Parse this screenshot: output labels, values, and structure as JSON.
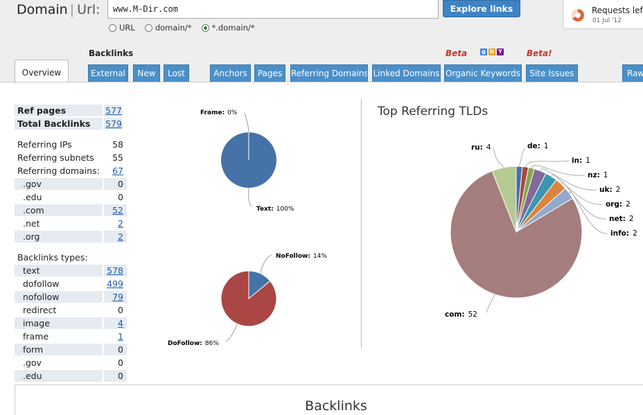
{
  "header": {
    "domain_label": "Domain",
    "url_label": "Url:",
    "url_value": "www.M-Dir.com",
    "explore_button": "Explore links",
    "scope_options": [
      {
        "label": "URL",
        "checked": false
      },
      {
        "label": "domain/*",
        "checked": false
      },
      {
        "label": "*.domain/*",
        "checked": true
      }
    ],
    "requests_title": "Requests left",
    "requests_date": "01 Jul '12"
  },
  "nav": {
    "section_label": "Backlinks",
    "beta_label_1": "Beta",
    "beta_label_2": "Beta!",
    "overview_tab": "Overview",
    "tabs": [
      "External",
      "New",
      "Lost",
      "Anchors",
      "Pages",
      "Referring Domains",
      "Linked Domains",
      "Organic Keywords",
      "Site Issues",
      "Raw"
    ]
  },
  "stats": {
    "ref_pages": {
      "label": "Ref pages",
      "value": "577"
    },
    "total_backlinks": {
      "label": "Total Backlinks",
      "value": "579"
    },
    "referring_ips": {
      "label": "Referring IPs",
      "value": "58"
    },
    "referring_subnets": {
      "label": "Referring subnets",
      "value": "55"
    },
    "referring_domains": {
      "label": "Referring domains:",
      "value": "67"
    },
    "domain_types": [
      {
        "label": ".gov",
        "value": "0",
        "link": false
      },
      {
        "label": ".edu",
        "value": "0",
        "link": false
      },
      {
        "label": ".com",
        "value": "52",
        "link": true
      },
      {
        "label": ".net",
        "value": "2",
        "link": true
      },
      {
        "label": ".org",
        "value": "2",
        "link": true
      }
    ],
    "backlinks_types_label": "Backlinks types:",
    "backlink_types": [
      {
        "label": "text",
        "value": "578",
        "link": true
      },
      {
        "label": "dofollow",
        "value": "499",
        "link": true
      },
      {
        "label": "nofollow",
        "value": "79",
        "link": true
      },
      {
        "label": "redirect",
        "value": "0",
        "link": false
      },
      {
        "label": "image",
        "value": "4",
        "link": true
      },
      {
        "label": "frame",
        "value": "1",
        "link": true
      },
      {
        "label": "form",
        "value": "0",
        "link": false
      },
      {
        "label": ".gov",
        "value": "0",
        "link": false
      },
      {
        "label": ".edu",
        "value": "0",
        "link": false
      }
    ]
  },
  "chart_data": [
    {
      "type": "pie",
      "title": "",
      "slices": [
        {
          "label": "Frame:",
          "value": 0,
          "display": "0%",
          "color": "#4572a7"
        },
        {
          "label": "Text:",
          "value": 100,
          "display": "100%",
          "color": "#4572a7"
        }
      ]
    },
    {
      "type": "pie",
      "title": "",
      "slices": [
        {
          "label": "NoFollow:",
          "value": 14,
          "display": "14%",
          "color": "#4572a7"
        },
        {
          "label": "DoFollow:",
          "value": 86,
          "display": "86%",
          "color": "#aa4643"
        }
      ]
    },
    {
      "type": "pie",
      "title": "Top Referring TLDs",
      "slices": [
        {
          "label": "ru:",
          "value": 4,
          "color": "#b5ca92"
        },
        {
          "label": "de:",
          "value": 1,
          "color": "#4572a7"
        },
        {
          "label": "in:",
          "value": 1,
          "color": "#aa4643"
        },
        {
          "label": "nz:",
          "value": 1,
          "color": "#89a54e"
        },
        {
          "label": "uk:",
          "value": 2,
          "color": "#80699b"
        },
        {
          "label": "org:",
          "value": 2,
          "color": "#3d96ae"
        },
        {
          "label": "net:",
          "value": 2,
          "color": "#db843d"
        },
        {
          "label": "info:",
          "value": 2,
          "color": "#92a8cd"
        },
        {
          "label": "com:",
          "value": 52,
          "color": "#a47d7c"
        }
      ]
    }
  ],
  "bottom": {
    "title": "Backlinks"
  }
}
